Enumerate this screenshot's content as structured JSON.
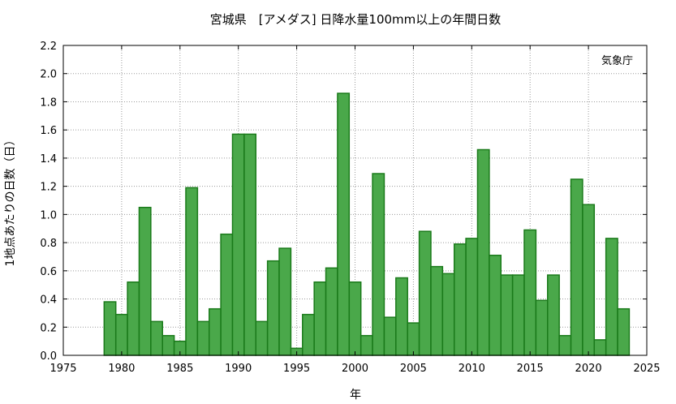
{
  "chart_data": {
    "type": "bar",
    "title": "宮城県　[アメダス] 日降水量100mm以上の年間日数",
    "xlabel": "年",
    "ylabel": "1地点あたりの日数（日）",
    "source_label": "気象庁",
    "xlim": [
      1975,
      2025
    ],
    "ylim": [
      0.0,
      2.2
    ],
    "xticks": [
      1975,
      1980,
      1985,
      1990,
      1995,
      2000,
      2005,
      2010,
      2015,
      2020,
      2025
    ],
    "yticks": [
      "0.0",
      "0.2",
      "0.4",
      "0.6",
      "0.8",
      "1.0",
      "1.2",
      "1.4",
      "1.6",
      "1.8",
      "2.0",
      "2.2"
    ],
    "grid": true,
    "bar_color": "#4aa84a",
    "bar_edge_color": "#1a7a1a",
    "categories": [
      1979,
      1980,
      1981,
      1982,
      1983,
      1984,
      1985,
      1986,
      1987,
      1988,
      1989,
      1990,
      1991,
      1992,
      1993,
      1994,
      1995,
      1996,
      1997,
      1998,
      1999,
      2000,
      2001,
      2002,
      2003,
      2004,
      2005,
      2006,
      2007,
      2008,
      2009,
      2010,
      2011,
      2012,
      2013,
      2014,
      2015,
      2016,
      2017,
      2018,
      2019,
      2020,
      2021,
      2022,
      2023
    ],
    "values": [
      0.38,
      0.29,
      0.52,
      1.05,
      0.24,
      0.14,
      0.1,
      1.19,
      0.24,
      0.33,
      0.86,
      1.57,
      1.57,
      0.24,
      0.67,
      0.76,
      0.05,
      0.29,
      0.52,
      0.62,
      1.86,
      0.52,
      0.14,
      1.29,
      0.27,
      0.55,
      0.23,
      0.88,
      0.63,
      0.58,
      0.79,
      0.83,
      1.46,
      0.71,
      0.57,
      0.57,
      0.89,
      0.39,
      0.57,
      0.14,
      1.25,
      1.07,
      0.11,
      0.83,
      0.33
    ]
  }
}
